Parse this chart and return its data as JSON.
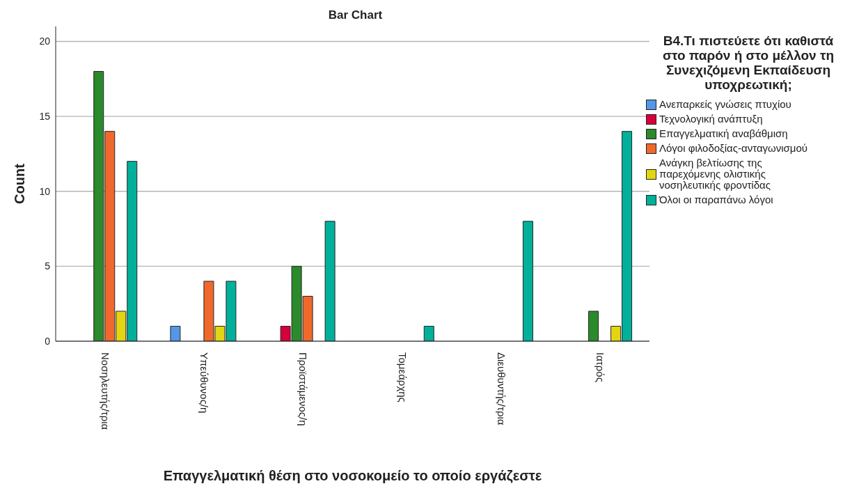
{
  "chart_data": {
    "type": "bar",
    "title": "Bar Chart",
    "xlabel": "Επαγγελματική θέση στο νοσοκομείο το οποίο εργάζεστε",
    "ylabel": "Count",
    "legend_title": "B4.Τι πιστεύετε ότι καθιστά στο παρόν ή στο μέλλον τη Συνεχιζόμενη Εκπαίδευση υποχρεωτική;",
    "categories": [
      "Νοσηλευτής/τρια",
      "Υπεύθυνος/η",
      "Προϊστάμενος/η",
      "Τομεάρχης",
      "Διευθυντής/τρια",
      "Ιατρός"
    ],
    "series": [
      {
        "name": "Ανεπαρκείς γνώσεις πτυχίου",
        "color": "#5596e6",
        "values": [
          null,
          1,
          null,
          null,
          null,
          null
        ]
      },
      {
        "name": "Τεχνολογική ανάπτυξη",
        "color": "#d6003a",
        "values": [
          null,
          null,
          1,
          null,
          null,
          null
        ]
      },
      {
        "name": "Επαγγελματική αναβάθμιση",
        "color": "#2b8a2b",
        "values": [
          18,
          null,
          5,
          null,
          null,
          2
        ]
      },
      {
        "name": "Λόγοι φιλοδοξίας-ανταγωνισμού",
        "color": "#f0692c",
        "values": [
          14,
          4,
          3,
          null,
          null,
          null
        ]
      },
      {
        "name": "Ανάγκη βελτίωσης της παρεχόμενης ολιστικής νοσηλευτικής φροντίδας",
        "color": "#e3d611",
        "values": [
          2,
          1,
          null,
          null,
          null,
          1
        ]
      },
      {
        "name": "Όλοι οι παραπάνω λόγοι",
        "color": "#00b09b",
        "values": [
          12,
          4,
          8,
          1,
          8,
          14
        ]
      }
    ],
    "ylim": [
      0,
      21
    ],
    "yticks": [
      0,
      5,
      10,
      15,
      20
    ],
    "grid": "y",
    "legend": "right"
  }
}
